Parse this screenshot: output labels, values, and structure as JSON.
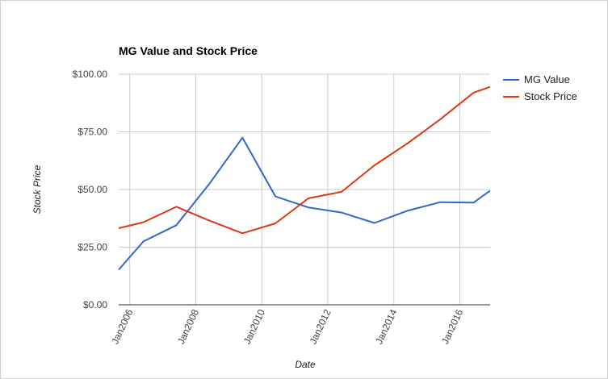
{
  "chart_data": {
    "type": "line",
    "title": "MG Value and Stock Price",
    "xlabel": "Date",
    "ylabel": "Stock Price",
    "xlim": [
      "2005-09-01",
      "2016-12-01"
    ],
    "ylim": [
      0,
      100
    ],
    "yticks": [
      "$0.00",
      "$25.00",
      "$50.00",
      "$75.00",
      "$100.00"
    ],
    "ytick_values": [
      0,
      25,
      50,
      75,
      100
    ],
    "xticks": [
      "Jan2006",
      "Jan2008",
      "Jan2010",
      "Jan2012",
      "Jan2014",
      "Jan2016"
    ],
    "xtick_dates": [
      "2006-01-01",
      "2008-01-01",
      "2010-01-01",
      "2012-01-01",
      "2014-01-01",
      "2016-01-01"
    ],
    "grid": true,
    "legend": "right",
    "series": [
      {
        "name": "MG Value",
        "color": "#3366cc",
        "points": [
          {
            "x": "2005-09-01",
            "y": 15.2
          },
          {
            "x": "2006-06-01",
            "y": 27.5
          },
          {
            "x": "2007-06-01",
            "y": 34.5
          },
          {
            "x": "2008-06-01",
            "y": 52.5
          },
          {
            "x": "2009-06-01",
            "y": 72.5
          },
          {
            "x": "2010-06-01",
            "y": 47.0
          },
          {
            "x": "2011-06-01",
            "y": 42.2
          },
          {
            "x": "2012-06-01",
            "y": 40.0
          },
          {
            "x": "2013-06-01",
            "y": 35.5
          },
          {
            "x": "2014-06-01",
            "y": 40.8
          },
          {
            "x": "2015-06-01",
            "y": 44.5
          },
          {
            "x": "2016-06-01",
            "y": 44.3
          },
          {
            "x": "2016-12-01",
            "y": 49.5
          }
        ]
      },
      {
        "name": "Stock Price",
        "color": "#dc3912",
        "points": [
          {
            "x": "2005-09-01",
            "y": 33.2
          },
          {
            "x": "2006-06-01",
            "y": 35.8
          },
          {
            "x": "2007-06-01",
            "y": 42.5
          },
          {
            "x": "2008-06-01",
            "y": 36.5
          },
          {
            "x": "2009-06-01",
            "y": 31.0
          },
          {
            "x": "2010-06-01",
            "y": 35.3
          },
          {
            "x": "2011-06-01",
            "y": 46.2
          },
          {
            "x": "2012-06-01",
            "y": 49.0
          },
          {
            "x": "2013-06-01",
            "y": 60.5
          },
          {
            "x": "2014-06-01",
            "y": 70.0
          },
          {
            "x": "2015-06-01",
            "y": 80.5
          },
          {
            "x": "2016-06-01",
            "y": 92.0
          },
          {
            "x": "2016-12-01",
            "y": 94.5
          }
        ]
      }
    ]
  }
}
